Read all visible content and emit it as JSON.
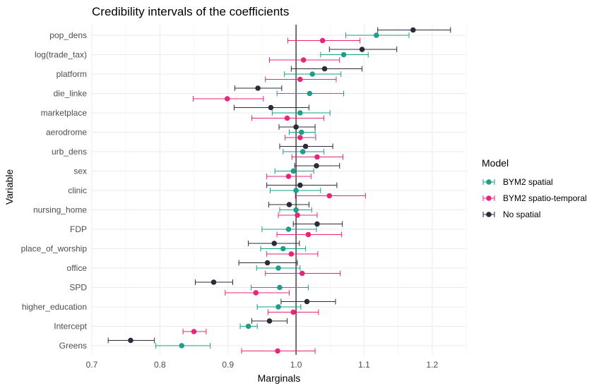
{
  "chart_data": {
    "type": "scatter",
    "subtype": "point-range (credible intervals)",
    "title": "Credibility intervals of the coefficients",
    "xlabel": "Marginals",
    "ylabel": "Variable",
    "xlim": [
      0.7,
      1.25
    ],
    "xticks": [
      "0.7",
      "0.8",
      "0.9",
      "1.0",
      "1.1",
      "1.2"
    ],
    "reference_line_x": 1.0,
    "grid": true,
    "legend_position": "right",
    "legend_title": "Model",
    "categories": [
      "pop_dens",
      "log(trade_tax)",
      "platform",
      "die_linke",
      "marketplace",
      "aerodrome",
      "urb_dens",
      "sex",
      "clinic",
      "nursing_home",
      "FDP",
      "place_of_worship",
      "office",
      "SPD",
      "higher_education",
      "Intercept",
      "Greens"
    ],
    "series": [
      {
        "name": "BYM2 spatial",
        "color": "#1b9e8a",
        "mean": [
          1.118,
          1.07,
          1.024,
          1.02,
          1.006,
          1.008,
          1.01,
          0.996,
          1.0,
          1.0,
          0.989,
          0.981,
          0.974,
          0.976,
          0.974,
          0.93,
          0.832
        ],
        "lower": [
          1.073,
          1.036,
          0.983,
          0.972,
          0.965,
          0.99,
          0.981,
          0.969,
          0.962,
          0.976,
          0.95,
          0.948,
          0.942,
          0.934,
          0.943,
          0.918,
          0.794
        ],
        "upper": [
          1.166,
          1.106,
          1.066,
          1.07,
          1.05,
          1.028,
          1.041,
          1.026,
          1.036,
          1.023,
          1.03,
          1.014,
          1.006,
          1.018,
          1.007,
          0.943,
          0.874
        ]
      },
      {
        "name": "BYM2 spatio-temporal",
        "color": "#e7257a",
        "mean": [
          1.039,
          1.011,
          1.006,
          0.899,
          0.987,
          1.006,
          1.031,
          0.989,
          1.049,
          1.002,
          1.018,
          0.993,
          1.009,
          0.941,
          0.996,
          0.85,
          0.973
        ],
        "lower": [
          0.988,
          0.961,
          0.955,
          0.849,
          0.935,
          0.984,
          0.994,
          0.957,
          0.999,
          0.974,
          0.972,
          0.957,
          0.955,
          0.896,
          0.959,
          0.834,
          0.92
        ],
        "upper": [
          1.094,
          1.064,
          1.059,
          0.952,
          1.041,
          1.029,
          1.069,
          1.022,
          1.102,
          1.031,
          1.067,
          1.032,
          1.065,
          0.99,
          1.033,
          0.868,
          1.028
        ]
      },
      {
        "name": "No spatial",
        "color": "#2b2b3c",
        "mean": [
          1.172,
          1.097,
          1.042,
          0.944,
          0.963,
          1.0,
          1.014,
          1.03,
          1.006,
          0.99,
          1.031,
          0.968,
          0.958,
          0.879,
          1.016,
          0.961,
          0.757
        ],
        "lower": [
          1.12,
          1.049,
          0.993,
          0.91,
          0.909,
          0.975,
          0.976,
          0.998,
          0.957,
          0.96,
          0.996,
          0.93,
          0.916,
          0.852,
          0.978,
          0.935,
          0.724
        ],
        "upper": [
          1.227,
          1.148,
          1.097,
          0.979,
          1.019,
          1.028,
          1.054,
          1.064,
          1.06,
          1.019,
          1.068,
          1.005,
          1.002,
          0.907,
          1.058,
          0.987,
          0.792
        ]
      }
    ]
  }
}
